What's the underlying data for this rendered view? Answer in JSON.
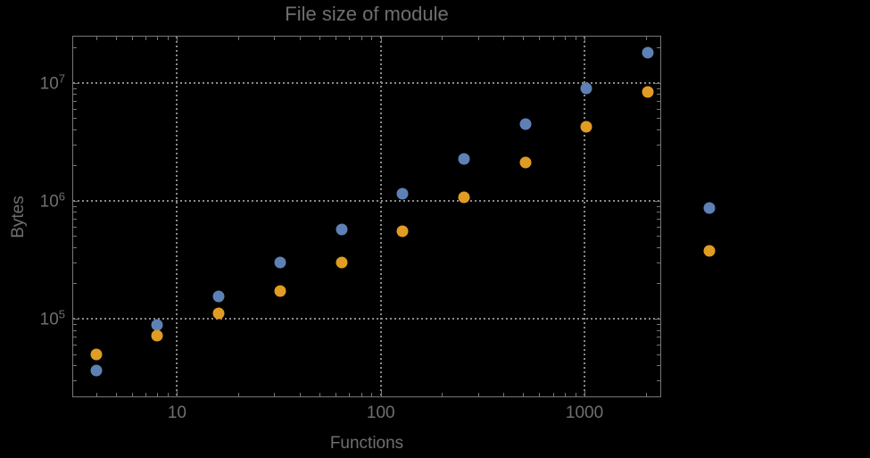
{
  "colors": {
    "background": "#000000",
    "text": "#6f6f6f",
    "frame": "#767676",
    "gridline": "#8a8a8a",
    "series1_blue": "#5E81B5",
    "series2_orange": "#E19C24"
  },
  "chart_data": {
    "type": "scatter",
    "title": "File size of module",
    "xlabel": "Functions",
    "ylabel": "Bytes",
    "x_scale": "log",
    "y_scale": "log",
    "grid": {
      "style": "dotted",
      "x_values": [
        10,
        100,
        1000
      ],
      "y_values": [
        100000,
        1000000,
        10000000
      ]
    },
    "legend": "none",
    "axes": {
      "x": {
        "log_range": [
          0.49,
          3.372
        ],
        "major_ticks": [
          {
            "value": 10,
            "label": "10"
          },
          {
            "value": 100,
            "label": "100"
          },
          {
            "value": 1000,
            "label": "1000"
          }
        ]
      },
      "y": {
        "log_range": [
          4.34,
          7.39
        ],
        "major_ticks": [
          {
            "value": 100000,
            "base": "10",
            "exp": "5"
          },
          {
            "value": 1000000,
            "base": "10",
            "exp": "6"
          },
          {
            "value": 10000000,
            "base": "10",
            "exp": "7"
          }
        ]
      }
    },
    "x": [
      4,
      8,
      16,
      32,
      64,
      128,
      256,
      512,
      1024,
      2048,
      4096
    ],
    "series": [
      {
        "name": "series-1-blue",
        "color": "#5E81B5",
        "values": [
          36000,
          88000,
          155000,
          300000,
          570000,
          1150000,
          2250000,
          4450000,
          8900000,
          17800000,
          870000
        ]
      },
      {
        "name": "series-2-orange",
        "color": "#E19C24",
        "values": [
          50000,
          71000,
          110000,
          170000,
          300000,
          550000,
          1070000,
          2100000,
          4200000,
          8400000,
          375000
        ]
      }
    ]
  }
}
